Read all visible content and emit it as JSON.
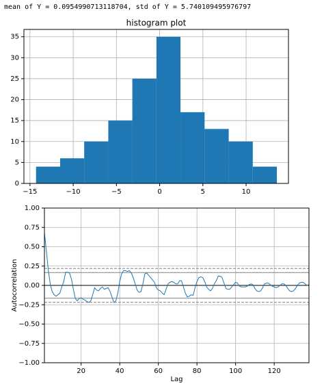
{
  "output_text": "mean of Y = 0.0954990713118704, std of Y = 5.740109495976797",
  "chart_data": [
    {
      "type": "histogram",
      "title": "histogram plot",
      "color": "#1f77b4",
      "grid": true,
      "bins": [
        -14.3,
        -11.51,
        -8.73,
        -5.94,
        -3.16,
        -0.37,
        2.41,
        5.2,
        7.99,
        10.77,
        13.56
      ],
      "values": [
        4,
        6,
        10,
        15,
        25,
        35,
        17,
        13,
        10,
        4
      ],
      "xlim": [
        -15.7,
        14.9
      ],
      "ylim": [
        0,
        36.75
      ],
      "xticks": [
        {
          "value": -15,
          "label": "−15"
        },
        {
          "value": -10,
          "label": "−10"
        },
        {
          "value": -5,
          "label": "−5"
        },
        0,
        5,
        10
      ],
      "yticks": [
        0,
        5,
        10,
        15,
        20,
        25,
        30,
        35
      ]
    },
    {
      "type": "line",
      "x_label": "Lag",
      "y_label": "Autocorrelation",
      "color": "#1f77b4",
      "grid": true,
      "x": [
        1,
        2,
        3,
        4,
        5,
        6,
        7,
        8,
        9,
        10,
        11,
        12,
        13,
        14,
        15,
        16,
        17,
        18,
        19,
        20,
        21,
        22,
        23,
        24,
        25,
        26,
        27,
        28,
        29,
        30,
        31,
        32,
        33,
        34,
        35,
        36,
        37,
        38,
        39,
        40,
        41,
        42,
        43,
        44,
        45,
        46,
        47,
        48,
        49,
        50,
        51,
        52,
        53,
        54,
        55,
        56,
        57,
        58,
        59,
        60,
        61,
        62,
        63,
        64,
        65,
        66,
        67,
        68,
        69,
        70,
        71,
        72,
        73,
        74,
        75,
        76,
        77,
        78,
        79,
        80,
        81,
        82,
        83,
        84,
        85,
        86,
        87,
        88,
        89,
        90,
        91,
        92,
        93,
        94,
        95,
        96,
        97,
        98,
        99,
        100,
        101,
        102,
        103,
        104,
        105,
        106,
        107,
        108,
        109,
        110,
        111,
        112,
        113,
        114,
        115,
        116,
        117,
        118,
        119,
        120,
        121,
        122,
        123,
        124,
        125,
        126,
        127,
        128,
        129,
        130,
        131,
        132,
        133,
        134,
        135,
        136,
        137,
        138
      ],
      "values": [
        0.68,
        0.45,
        0.2,
        0.02,
        -0.08,
        -0.12,
        -0.14,
        -0.12,
        -0.1,
        -0.02,
        0.05,
        0.17,
        0.17,
        0.16,
        0.08,
        -0.05,
        -0.17,
        -0.2,
        -0.17,
        -0.16,
        -0.18,
        -0.19,
        -0.21,
        -0.22,
        -0.2,
        -0.12,
        -0.03,
        -0.06,
        -0.07,
        -0.04,
        -0.02,
        -0.05,
        -0.04,
        -0.03,
        -0.08,
        -0.15,
        -0.22,
        -0.2,
        -0.1,
        0.05,
        0.15,
        0.19,
        0.19,
        0.18,
        0.19,
        0.16,
        0.1,
        0.02,
        -0.06,
        -0.09,
        -0.08,
        0.02,
        0.15,
        0.16,
        0.13,
        0.1,
        0.07,
        0.04,
        -0.03,
        -0.06,
        -0.07,
        -0.1,
        -0.12,
        -0.05,
        0.02,
        0.04,
        0.05,
        0.04,
        0.02,
        0.02,
        0.06,
        0.06,
        -0.02,
        -0.1,
        -0.15,
        -0.14,
        -0.12,
        -0.13,
        -0.03,
        0.05,
        0.1,
        0.11,
        0.1,
        0.05,
        -0.02,
        -0.05,
        -0.07,
        -0.04,
        0.02,
        0.06,
        0.12,
        0.12,
        0.1,
        0.03,
        -0.04,
        -0.05,
        -0.05,
        -0.02,
        0.01,
        0.04,
        0.03,
        -0.01,
        -0.02,
        -0.02,
        -0.02,
        -0.01,
        0.01,
        0.02,
        0.01,
        -0.04,
        -0.07,
        -0.08,
        -0.07,
        -0.03,
        0.02,
        0.03,
        0.03,
        0.01,
        -0.01,
        -0.02,
        -0.03,
        -0.02,
        0.0,
        0.02,
        0.02,
        0.0,
        -0.04,
        -0.07,
        -0.08,
        -0.07,
        -0.04,
        0.0,
        0.03,
        0.04,
        0.04,
        0.02,
        0.0,
        0.01
      ],
      "reference_lines": [
        {
          "value": 0.2185,
          "dashed": true,
          "color": "#808080"
        },
        {
          "value": 0.1662,
          "dashed": false,
          "color": "#808080"
        },
        {
          "value": 0,
          "dashed": false,
          "color": "#000000"
        },
        {
          "value": -0.1662,
          "dashed": false,
          "color": "#808080"
        },
        {
          "value": -0.2185,
          "dashed": true,
          "color": "#808080"
        }
      ],
      "xlim": [
        1,
        138
      ],
      "ylim": [
        -1,
        1
      ],
      "xticks": [
        20,
        40,
        60,
        80,
        100,
        120
      ],
      "yticks": [
        {
          "value": -1,
          "label": "−1.00"
        },
        {
          "value": -0.75,
          "label": "−0.75"
        },
        {
          "value": -0.5,
          "label": "−0.50"
        },
        {
          "value": -0.25,
          "label": "−0.25"
        },
        {
          "value": 0,
          "label": "0.00"
        },
        {
          "value": 0.25,
          "label": "0.25"
        },
        {
          "value": 0.5,
          "label": "0.50"
        },
        {
          "value": 0.75,
          "label": "0.75"
        },
        {
          "value": 1,
          "label": "1.00"
        }
      ]
    }
  ]
}
